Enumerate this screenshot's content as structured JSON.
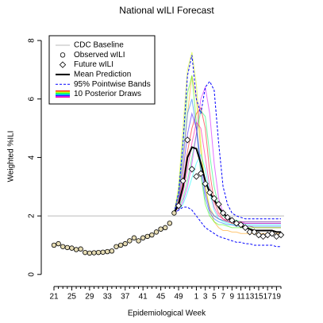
{
  "chart_data": {
    "type": "line",
    "title": "National wILI Forecast",
    "x_label": "Epidemiological Week",
    "y_label": "Weighted %ILI",
    "categories": [
      "21",
      null,
      null,
      null,
      "25",
      null,
      null,
      null,
      "29",
      null,
      null,
      null,
      "33",
      null,
      null,
      null,
      "37",
      null,
      null,
      null,
      "41",
      null,
      null,
      null,
      "45",
      null,
      null,
      null,
      "49",
      null,
      null,
      null,
      "1",
      null,
      "3",
      null,
      "5",
      null,
      "7",
      null,
      "9",
      null,
      "11",
      null,
      "13",
      null,
      "15",
      null,
      "17",
      null,
      "19",
      null
    ],
    "ylim": [
      -0.25,
      8.3
    ],
    "yticks": [
      0,
      2,
      4,
      6,
      8
    ],
    "legend": "top-left",
    "baseline": {
      "name": "CDC Baseline",
      "value": 2.0,
      "color": "#c8c8c8"
    },
    "observed": {
      "name": "Observed wILI",
      "color": "#e6dcb4",
      "values": [
        1.0,
        1.05,
        0.95,
        0.92,
        0.9,
        0.85,
        0.87,
        0.75,
        0.73,
        0.74,
        0.75,
        0.76,
        0.78,
        0.8,
        0.95,
        1.0,
        1.05,
        1.15,
        1.25,
        1.15,
        1.25,
        1.3,
        1.35,
        1.45,
        1.55,
        1.6,
        1.75,
        2.1,
        null,
        null,
        null,
        null,
        null,
        null,
        null,
        null,
        null,
        null,
        null,
        null,
        null,
        null,
        null,
        null,
        null,
        null,
        null,
        null,
        null,
        null,
        null,
        null
      ]
    },
    "future": {
      "name": "Future wILI",
      "color": "#ffffff",
      "values": [
        null,
        null,
        null,
        null,
        null,
        null,
        null,
        null,
        null,
        null,
        null,
        null,
        null,
        null,
        null,
        null,
        null,
        null,
        null,
        null,
        null,
        null,
        null,
        null,
        null,
        null,
        null,
        null,
        2.35,
        3.2,
        4.6,
        3.6,
        3.35,
        3.45,
        3.1,
        2.8,
        2.6,
        2.4,
        2.1,
        1.95,
        1.85,
        1.75,
        1.7,
        1.6,
        1.45,
        1.45,
        1.35,
        1.3,
        1.35,
        1.4,
        1.3,
        1.35
      ]
    },
    "mean": {
      "name": "Mean Prediction",
      "color": "#000000",
      "values": [
        null,
        null,
        null,
        null,
        null,
        null,
        null,
        null,
        null,
        null,
        null,
        null,
        null,
        null,
        null,
        null,
        null,
        null,
        null,
        null,
        null,
        null,
        null,
        null,
        null,
        null,
        null,
        2.1,
        2.4,
        3.0,
        4.0,
        4.35,
        4.3,
        3.8,
        3.2,
        2.8,
        2.55,
        2.3,
        2.1,
        1.95,
        1.85,
        1.75,
        1.65,
        1.6,
        1.55,
        1.5,
        1.5,
        1.5,
        1.5,
        1.5,
        1.45,
        1.45
      ]
    },
    "bands": {
      "name": "95% Pointwise Bands",
      "color": "#0000ff",
      "upper": [
        null,
        null,
        null,
        null,
        null,
        null,
        null,
        null,
        null,
        null,
        null,
        null,
        null,
        null,
        null,
        null,
        null,
        null,
        null,
        null,
        null,
        null,
        null,
        null,
        null,
        null,
        null,
        2.1,
        2.8,
        4.5,
        6.8,
        7.5,
        6.0,
        5.5,
        6.4,
        6.6,
        6.3,
        4.5,
        3.0,
        2.4,
        2.1,
        2.0,
        1.95,
        1.9,
        1.9,
        1.9,
        1.9,
        1.9,
        1.9,
        1.9,
        1.9,
        1.9
      ],
      "lower": [
        null,
        null,
        null,
        null,
        null,
        null,
        null,
        null,
        null,
        null,
        null,
        null,
        null,
        null,
        null,
        null,
        null,
        null,
        null,
        null,
        null,
        null,
        null,
        null,
        null,
        null,
        null,
        2.1,
        2.2,
        2.3,
        2.3,
        2.2,
        2.0,
        1.8,
        1.6,
        1.5,
        1.4,
        1.3,
        1.25,
        1.2,
        1.15,
        1.1,
        1.1,
        1.05,
        1.05,
        1.0,
        1.0,
        1.0,
        1.0,
        1.0,
        0.95,
        0.95
      ]
    },
    "draws": {
      "name": "10 Posterior Draws",
      "series": [
        {
          "color": "#ff0000",
          "values": [
            null,
            null,
            null,
            null,
            null,
            null,
            null,
            null,
            null,
            null,
            null,
            null,
            null,
            null,
            null,
            null,
            null,
            null,
            null,
            null,
            null,
            null,
            null,
            null,
            null,
            null,
            null,
            2.1,
            2.5,
            3.2,
            4.2,
            5.0,
            5.5,
            5.7,
            5.0,
            3.5,
            2.5,
            2.1,
            1.9,
            1.8,
            1.75,
            1.7,
            1.7,
            1.65,
            1.65,
            1.6,
            1.6,
            1.6,
            1.6,
            1.6,
            1.6,
            1.6
          ]
        },
        {
          "color": "#ff9900",
          "values": [
            null,
            null,
            null,
            null,
            null,
            null,
            null,
            null,
            null,
            null,
            null,
            null,
            null,
            null,
            null,
            null,
            null,
            null,
            null,
            null,
            null,
            null,
            null,
            null,
            null,
            null,
            null,
            2.1,
            2.6,
            3.8,
            5.5,
            6.8,
            6.0,
            4.2,
            3.0,
            2.2,
            1.8,
            1.6,
            1.5,
            1.5,
            1.45,
            1.45,
            1.4,
            1.4,
            1.4,
            1.4,
            1.4,
            1.4,
            1.4,
            1.4,
            1.4,
            1.4
          ]
        },
        {
          "color": "#ccff00",
          "values": [
            null,
            null,
            null,
            null,
            null,
            null,
            null,
            null,
            null,
            null,
            null,
            null,
            null,
            null,
            null,
            null,
            null,
            null,
            null,
            null,
            null,
            null,
            null,
            null,
            null,
            null,
            null,
            2.1,
            3.0,
            5.0,
            7.0,
            7.6,
            6.5,
            4.5,
            3.0,
            2.3,
            2.0,
            1.9,
            1.85,
            1.8,
            1.8,
            1.8,
            1.8,
            1.8,
            1.8,
            1.8,
            1.8,
            1.8,
            1.8,
            1.8,
            1.8,
            1.8
          ]
        },
        {
          "color": "#33ff00",
          "values": [
            null,
            null,
            null,
            null,
            null,
            null,
            null,
            null,
            null,
            null,
            null,
            null,
            null,
            null,
            null,
            null,
            null,
            null,
            null,
            null,
            null,
            null,
            null,
            null,
            null,
            null,
            null,
            2.1,
            2.8,
            4.5,
            6.2,
            6.8,
            5.2,
            3.4,
            2.4,
            2.0,
            1.8,
            1.7,
            1.7,
            1.65,
            1.6,
            1.6,
            1.6,
            1.6,
            1.6,
            1.6,
            1.6,
            1.6,
            1.6,
            1.6,
            1.6,
            1.6
          ]
        },
        {
          "color": "#00ff66",
          "values": [
            null,
            null,
            null,
            null,
            null,
            null,
            null,
            null,
            null,
            null,
            null,
            null,
            null,
            null,
            null,
            null,
            null,
            null,
            null,
            null,
            null,
            null,
            null,
            null,
            null,
            null,
            null,
            2.1,
            2.3,
            2.6,
            3.2,
            4.0,
            4.8,
            5.6,
            5.4,
            4.1,
            3.0,
            2.3,
            2.0,
            1.9,
            1.85,
            1.85,
            1.8,
            1.8,
            1.8,
            1.8,
            1.8,
            1.8,
            1.8,
            1.8,
            1.8,
            1.8
          ]
        },
        {
          "color": "#00ffff",
          "values": [
            null,
            null,
            null,
            null,
            null,
            null,
            null,
            null,
            null,
            null,
            null,
            null,
            null,
            null,
            null,
            null,
            null,
            null,
            null,
            null,
            null,
            null,
            null,
            null,
            null,
            null,
            null,
            2.1,
            2.2,
            2.4,
            2.8,
            3.3,
            3.8,
            4.1,
            3.6,
            2.8,
            2.2,
            1.9,
            1.8,
            1.75,
            1.7,
            1.7,
            1.7,
            1.7,
            1.7,
            1.7,
            1.7,
            1.7,
            1.7,
            1.7,
            1.7,
            1.7
          ]
        },
        {
          "color": "#0066ff",
          "values": [
            null,
            null,
            null,
            null,
            null,
            null,
            null,
            null,
            null,
            null,
            null,
            null,
            null,
            null,
            null,
            null,
            null,
            null,
            null,
            null,
            null,
            null,
            null,
            null,
            null,
            null,
            null,
            2.1,
            2.7,
            4.0,
            5.5,
            6.0,
            5.0,
            3.5,
            2.6,
            2.1,
            1.9,
            1.8,
            1.75,
            1.7,
            1.7,
            1.65,
            1.65,
            1.65,
            1.65,
            1.65,
            1.65,
            1.65,
            1.65,
            1.65,
            1.65,
            1.65
          ]
        },
        {
          "color": "#3300ff",
          "values": [
            null,
            null,
            null,
            null,
            null,
            null,
            null,
            null,
            null,
            null,
            null,
            null,
            null,
            null,
            null,
            null,
            null,
            null,
            null,
            null,
            null,
            null,
            null,
            null,
            null,
            null,
            null,
            2.1,
            2.5,
            3.5,
            4.8,
            5.5,
            5.0,
            3.8,
            2.8,
            2.2,
            2.0,
            1.9,
            1.85,
            1.8,
            1.8,
            1.75,
            1.75,
            1.75,
            1.75,
            1.75,
            1.75,
            1.75,
            1.75,
            1.75,
            1.75,
            1.75
          ]
        },
        {
          "color": "#cc00ff",
          "values": [
            null,
            null,
            null,
            null,
            null,
            null,
            null,
            null,
            null,
            null,
            null,
            null,
            null,
            null,
            null,
            null,
            null,
            null,
            null,
            null,
            null,
            null,
            null,
            null,
            null,
            null,
            null,
            2.1,
            2.2,
            2.5,
            3.0,
            3.8,
            4.8,
            6.0,
            6.4,
            5.5,
            3.8,
            2.6,
            2.1,
            1.9,
            1.85,
            1.8,
            1.8,
            1.8,
            1.8,
            1.8,
            1.8,
            1.8,
            1.8,
            1.8,
            1.8,
            1.8
          ]
        },
        {
          "color": "#ff0099",
          "values": [
            null,
            null,
            null,
            null,
            null,
            null,
            null,
            null,
            null,
            null,
            null,
            null,
            null,
            null,
            null,
            null,
            null,
            null,
            null,
            null,
            null,
            null,
            null,
            null,
            null,
            null,
            null,
            2.1,
            2.3,
            2.8,
            3.6,
            4.5,
            5.2,
            5.0,
            4.0,
            3.0,
            2.3,
            2.0,
            1.9,
            1.85,
            1.8,
            1.8,
            1.8,
            1.75,
            1.75,
            1.75,
            1.75,
            1.75,
            1.75,
            1.75,
            1.75,
            1.75
          ]
        }
      ]
    }
  }
}
